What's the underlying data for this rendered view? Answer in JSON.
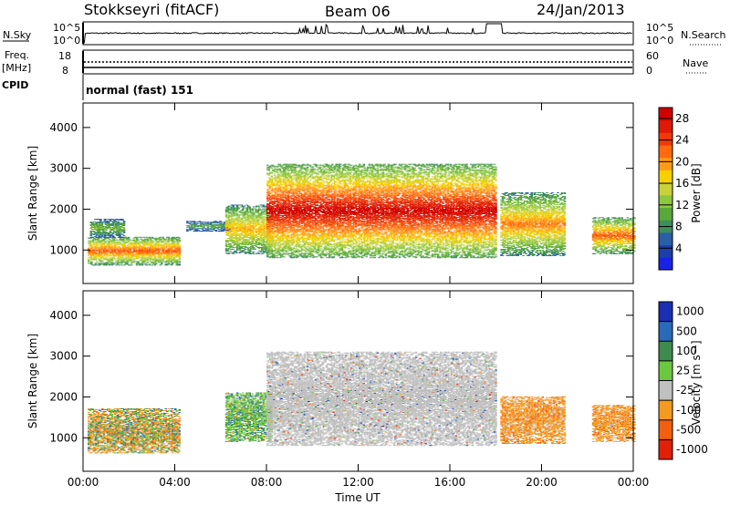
{
  "header": {
    "site": "Stokkseyri (fitACF)",
    "beam": "Beam 06",
    "date": "24/Jan/2013"
  },
  "status_panels": {
    "nsky_label": "N.Sky",
    "nsky_ticks": [
      "10^5",
      "10^0"
    ],
    "nsearch_label": "N.Search",
    "freq_label_1": "Freq.",
    "freq_label_2": "[MHz]",
    "freq_ticks": [
      "18",
      "8"
    ],
    "nave_ticks": [
      "60",
      "0"
    ],
    "nave_label": "Nave",
    "cpid_label": "CPID",
    "cpid_value": "normal (fast) 151"
  },
  "colors": {
    "power": [
      "#1a22e6",
      "#1b3ea8",
      "#2a5ea8",
      "#3d8e5a",
      "#5aa83a",
      "#8dc63f",
      "#c8d23a",
      "#f5d000",
      "#ff9a1a",
      "#ff6a10",
      "#ee3a0a",
      "#dd1a08",
      "#d00000"
    ],
    "velocity": [
      "#1b2fb0",
      "#2a6ab8",
      "#3f8a4e",
      "#6bc83e",
      "#c0c0c0",
      "#f59a20",
      "#f06010",
      "#e02008"
    ],
    "velocity_ground": "#bebebe"
  },
  "chart_data": [
    {
      "type": "heatmap",
      "panel": "power",
      "ylabel": "Slant Range [km]",
      "ylim": [
        180,
        4600
      ],
      "yticks": [
        "1000",
        "2000",
        "3000",
        "4000"
      ],
      "colorbar_label": "Power [dB]",
      "colorbar_ticks": [
        "4",
        "8",
        "12",
        "16",
        "20",
        "24",
        "28"
      ],
      "colorbar_range": [
        0,
        30
      ],
      "features": [
        {
          "t": [
            0.2,
            4.2
          ],
          "range": [
            620,
            1320
          ],
          "peak_db": 22
        },
        {
          "t": [
            0.3,
            1.8
          ],
          "range": [
            1300,
            1750
          ],
          "peak_db": 10
        },
        {
          "t": [
            4.5,
            6.4
          ],
          "range": [
            1450,
            1700
          ],
          "peak_db": 8
        },
        {
          "t": [
            6.2,
            8.2
          ],
          "range": [
            900,
            2100
          ],
          "peak_db": 18
        },
        {
          "t": [
            8.0,
            18.0
          ],
          "range": [
            800,
            3100
          ],
          "peak_db": 28
        },
        {
          "t": [
            18.2,
            21.0
          ],
          "range": [
            850,
            2400
          ],
          "peak_db": 20
        },
        {
          "t": [
            22.2,
            24.0
          ],
          "range": [
            900,
            1800
          ],
          "peak_db": 22
        }
      ]
    },
    {
      "type": "heatmap",
      "panel": "velocity",
      "ylabel": "Slant Range [km]",
      "xlabel": "Time UT",
      "xticks": [
        "00:00",
        "04:00",
        "08:00",
        "12:00",
        "16:00",
        "20:00",
        "00:00"
      ],
      "xlim": [
        0,
        24
      ],
      "ylim": [
        180,
        4600
      ],
      "yticks": [
        "1000",
        "2000",
        "3000",
        "4000"
      ],
      "colorbar_label": "Velocity [m s⁻¹]",
      "colorbar_ticks": [
        "1000",
        "500",
        "100",
        "25",
        "-25",
        "-100",
        "-500",
        "-1000"
      ],
      "features": [
        {
          "t": [
            0.2,
            4.2
          ],
          "range": [
            620,
            1700
          ],
          "class": "mixed"
        },
        {
          "t": [
            6.2,
            8.2
          ],
          "range": [
            900,
            2100
          ],
          "class": "towards"
        },
        {
          "t": [
            8.0,
            18.0
          ],
          "range": [
            800,
            3100
          ],
          "class": "ground"
        },
        {
          "t": [
            18.2,
            21.0
          ],
          "range": [
            850,
            2000
          ],
          "class": "away"
        },
        {
          "t": [
            22.2,
            24.0
          ],
          "range": [
            900,
            1800
          ],
          "class": "away"
        }
      ]
    }
  ]
}
